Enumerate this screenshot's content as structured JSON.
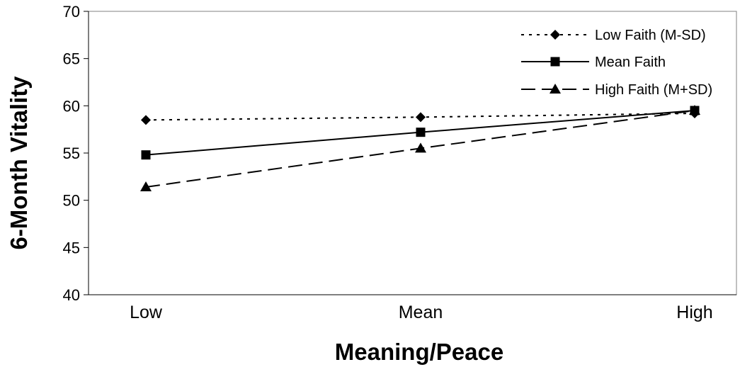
{
  "chart_data": {
    "type": "line",
    "title": "",
    "xlabel": "Meaning/Peace",
    "ylabel": "6-Month Vitality",
    "categories": [
      "Low",
      "Mean",
      "High"
    ],
    "ylim": [
      40,
      70
    ],
    "yticks": [
      40,
      45,
      50,
      55,
      60,
      65,
      70
    ],
    "grid": false,
    "legend_position": "top-right",
    "series": [
      {
        "name": "Low Faith (M-SD)",
        "values": [
          58.5,
          58.8,
          59.2
        ],
        "marker": "diamond",
        "line_style": "dotted",
        "color": "#000000"
      },
      {
        "name": "Mean Faith",
        "values": [
          54.8,
          57.2,
          59.5
        ],
        "marker": "square",
        "line_style": "solid",
        "color": "#000000"
      },
      {
        "name": "High Faith (M+SD)",
        "values": [
          51.4,
          55.5,
          59.5
        ],
        "marker": "triangle",
        "line_style": "dashed",
        "color": "#000000"
      }
    ]
  }
}
